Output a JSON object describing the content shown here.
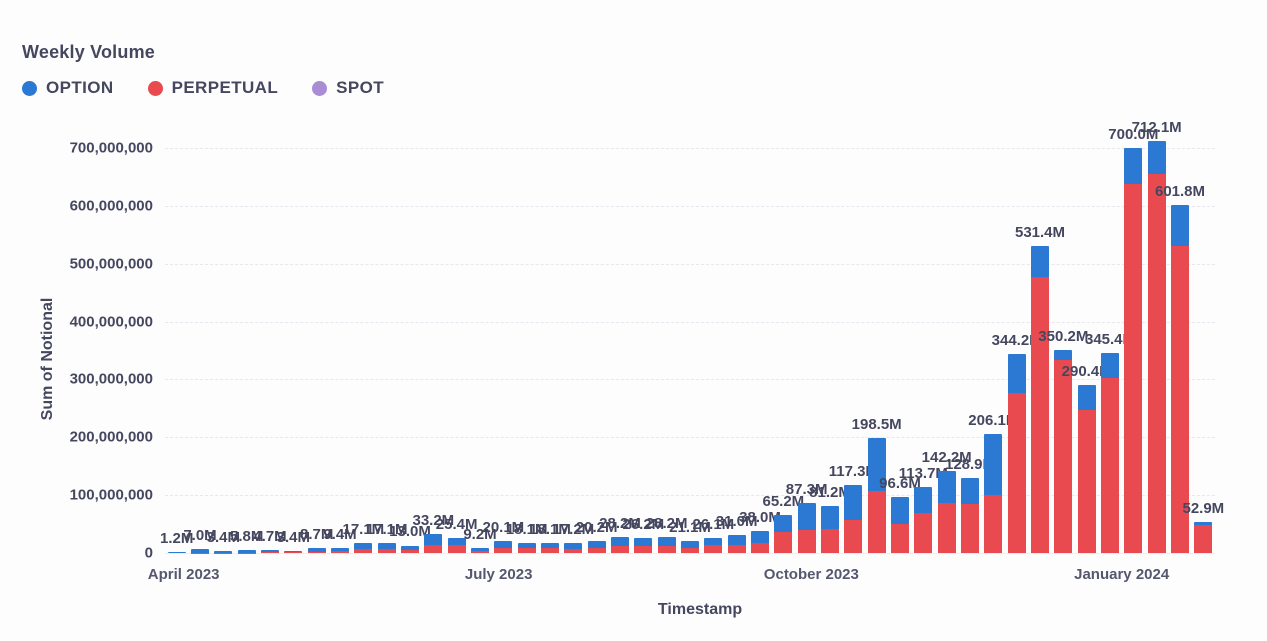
{
  "title": "Weekly Volume",
  "legend": {
    "items": [
      {
        "label": "OPTION",
        "color": "#2b79d2"
      },
      {
        "label": "PERPETUAL",
        "color": "#e84a50"
      },
      {
        "label": "SPOT",
        "color": "#a98cd6"
      }
    ]
  },
  "colors": {
    "option": "#2b79d2",
    "perpetual": "#e84a50",
    "spot": "#a98cd6",
    "text": "#45475f",
    "gridline": "#e7e7ef",
    "background": "#fdfdfe"
  },
  "chart_data": {
    "type": "bar",
    "stacked": true,
    "title": "Weekly Volume",
    "xlabel": "Timestamp",
    "ylabel": "Sum of Notional",
    "units": "notional, values in millions (M)",
    "ylim_m": [
      0,
      700
    ],
    "grid": "horizontal-dashed",
    "legend_position": "top-left",
    "stack_order_bottom_to_top": [
      "PERPETUAL",
      "OPTION",
      "SPOT"
    ],
    "y_ticks": [
      "0",
      "100,000,000",
      "200,000,000",
      "300,000,000",
      "400,000,000",
      "500,000,000",
      "600,000,000",
      "700,000,000"
    ],
    "x_ticks": [
      {
        "label": "April 2023",
        "at_bar": 0.3
      },
      {
        "label": "July 2023",
        "at_bar": 13.8
      },
      {
        "label": "October 2023",
        "at_bar": 27.2
      },
      {
        "label": "January 2024",
        "at_bar": 40.5
      }
    ],
    "bars": [
      {
        "label": "1.2M",
        "option_m": 1.1,
        "perpetual_m": 0.1,
        "spot_m": 0,
        "total_m": 1.2
      },
      {
        "label": "7.0M",
        "option_m": 6.5,
        "perpetual_m": 0.5,
        "spot_m": 0,
        "total_m": 7.0
      },
      {
        "label": "3.4M",
        "option_m": 3.1,
        "perpetual_m": 0.3,
        "spot_m": 0,
        "total_m": 3.4
      },
      {
        "label": "5.8M",
        "option_m": 5.3,
        "perpetual_m": 0.5,
        "spot_m": 0,
        "total_m": 5.8
      },
      {
        "label": "4.7M",
        "option_m": 3.5,
        "perpetual_m": 1.2,
        "spot_m": 0,
        "total_m": 4.7
      },
      {
        "label": "3.4M",
        "option_m": 2.4,
        "perpetual_m": 1.0,
        "spot_m": 0,
        "total_m": 3.4
      },
      {
        "label": "8.7M",
        "option_m": 6.1,
        "perpetual_m": 2.6,
        "spot_m": 0,
        "total_m": 8.7
      },
      {
        "label": "9.4M",
        "option_m": 6.6,
        "perpetual_m": 2.8,
        "spot_m": 0,
        "total_m": 9.4
      },
      {
        "label": "17.1M",
        "option_m": 10.3,
        "perpetual_m": 6.8,
        "spot_m": 0,
        "total_m": 17.1
      },
      {
        "label": "17.1M",
        "option_m": 10.3,
        "perpetual_m": 6.8,
        "spot_m": 0,
        "total_m": 17.1
      },
      {
        "label": "13.0M",
        "option_m": 7.8,
        "perpetual_m": 5.2,
        "spot_m": 0,
        "total_m": 13.0
      },
      {
        "label": "33.2M",
        "option_m": 19.0,
        "perpetual_m": 14.2,
        "spot_m": 0,
        "total_m": 33.2
      },
      {
        "label": "25.4M",
        "option_m": 11.0,
        "perpetual_m": 14.4,
        "spot_m": 0,
        "total_m": 25.4
      },
      {
        "label": "9.2M",
        "option_m": 5.5,
        "perpetual_m": 3.7,
        "spot_m": 0,
        "total_m": 9.2
      },
      {
        "label": "20.1M",
        "option_m": 11.0,
        "perpetual_m": 9.1,
        "spot_m": 0,
        "total_m": 20.1
      },
      {
        "label": "18.1M",
        "option_m": 10.0,
        "perpetual_m": 8.1,
        "spot_m": 0,
        "total_m": 18.1
      },
      {
        "label": "18.1M",
        "option_m": 10.0,
        "perpetual_m": 8.1,
        "spot_m": 0,
        "total_m": 18.1
      },
      {
        "label": "17.2M",
        "option_m": 9.5,
        "perpetual_m": 7.7,
        "spot_m": 0,
        "total_m": 17.2
      },
      {
        "label": "20.2M",
        "option_m": 11.0,
        "perpetual_m": 9.2,
        "spot_m": 0,
        "total_m": 20.2
      },
      {
        "label": "28.2M",
        "option_m": 15.5,
        "perpetual_m": 12.7,
        "spot_m": 0,
        "total_m": 28.2
      },
      {
        "label": "26.2M",
        "option_m": 14.4,
        "perpetual_m": 11.8,
        "spot_m": 0,
        "total_m": 26.2
      },
      {
        "label": "28.2M",
        "option_m": 15.5,
        "perpetual_m": 12.7,
        "spot_m": 0,
        "total_m": 28.2
      },
      {
        "label": "21.1M",
        "option_m": 11.6,
        "perpetual_m": 9.5,
        "spot_m": 0,
        "total_m": 21.1
      },
      {
        "label": "26.1M",
        "option_m": 13.0,
        "perpetual_m": 13.1,
        "spot_m": 0,
        "total_m": 26.1
      },
      {
        "label": "31.0M",
        "option_m": 17.0,
        "perpetual_m": 14.0,
        "spot_m": 0,
        "total_m": 31.0
      },
      {
        "label": "38.0M",
        "option_m": 21.0,
        "perpetual_m": 17.0,
        "spot_m": 0,
        "total_m": 38.0
      },
      {
        "label": "65.2M",
        "option_m": 29.0,
        "perpetual_m": 36.2,
        "spot_m": 0,
        "total_m": 65.2
      },
      {
        "label": "87.3M",
        "option_m": 48.0,
        "perpetual_m": 39.3,
        "spot_m": 0,
        "total_m": 87.3
      },
      {
        "label": "81.2M",
        "option_m": 40.0,
        "perpetual_m": 41.2,
        "spot_m": 0,
        "total_m": 81.2
      },
      {
        "label": "117.3M",
        "option_m": 60.0,
        "perpetual_m": 57.3,
        "spot_m": 0,
        "total_m": 117.3
      },
      {
        "label": "198.5M",
        "option_m": 91.0,
        "perpetual_m": 107.5,
        "spot_m": 0,
        "total_m": 198.5
      },
      {
        "label": "96.6M",
        "option_m": 47.0,
        "perpetual_m": 49.6,
        "spot_m": 0,
        "total_m": 96.6
      },
      {
        "label": "113.7M",
        "option_m": 45.0,
        "perpetual_m": 68.7,
        "spot_m": 0,
        "total_m": 113.7
      },
      {
        "label": "142.2M",
        "option_m": 55.0,
        "perpetual_m": 87.2,
        "spot_m": 0,
        "total_m": 142.2
      },
      {
        "label": "128.9M",
        "option_m": 45.0,
        "perpetual_m": 83.9,
        "spot_m": 0,
        "total_m": 128.9
      },
      {
        "label": "206.1M",
        "option_m": 106.0,
        "perpetual_m": 100.1,
        "spot_m": 0,
        "total_m": 206.1
      },
      {
        "label": "344.2M",
        "option_m": 67.0,
        "perpetual_m": 277.2,
        "spot_m": 0,
        "total_m": 344.2
      },
      {
        "label": "531.4M",
        "option_m": 55.0,
        "perpetual_m": 476.4,
        "spot_m": 0,
        "total_m": 531.4
      },
      {
        "label": "350.2M",
        "option_m": 17.0,
        "perpetual_m": 333.2,
        "spot_m": 0,
        "total_m": 350.2
      },
      {
        "label": "290.4M",
        "option_m": 43.0,
        "perpetual_m": 247.4,
        "spot_m": 0,
        "total_m": 290.4
      },
      {
        "label": "345.4M",
        "option_m": 43.0,
        "perpetual_m": 302.4,
        "spot_m": 0,
        "total_m": 345.4
      },
      {
        "label": "700.0M",
        "option_m": 62.0,
        "perpetual_m": 638.0,
        "spot_m": 0,
        "total_m": 700.0
      },
      {
        "label": "712.1M",
        "option_m": 57.0,
        "perpetual_m": 655.1,
        "spot_m": 0,
        "total_m": 712.1
      },
      {
        "label": "601.8M",
        "option_m": 71.0,
        "perpetual_m": 530.8,
        "spot_m": 0,
        "total_m": 601.8
      },
      {
        "label": "52.9M",
        "option_m": 5.0,
        "perpetual_m": 47.9,
        "spot_m": 0,
        "total_m": 52.9
      }
    ]
  }
}
